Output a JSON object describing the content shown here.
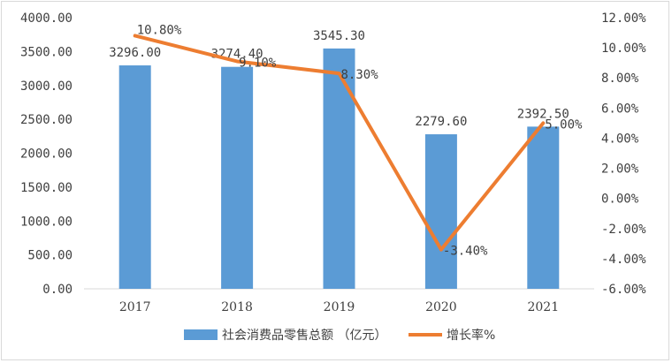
{
  "chart_data": {
    "type": "bar+line",
    "categories": [
      "2017",
      "2018",
      "2019",
      "2020",
      "2021"
    ],
    "series": [
      {
        "name": "社会消费品零售总额 （亿元）",
        "type": "bar",
        "axis": "left",
        "values": [
          3296.0,
          3274.4,
          3545.3,
          2279.6,
          2392.5
        ],
        "labels": [
          "3296.00",
          "3274.40",
          "3545.30",
          "2279.60",
          "2392.50"
        ],
        "color": "#5b9bd5"
      },
      {
        "name": "增长率%",
        "type": "line",
        "axis": "right",
        "values": [
          10.8,
          9.1,
          8.3,
          -3.4,
          5.0
        ],
        "labels": [
          "10.80%",
          "9.10%",
          "8.30%",
          "-3.40%",
          "5.00%"
        ],
        "color": "#ed7d31"
      }
    ],
    "left_axis": {
      "ylim": [
        0,
        4000
      ],
      "ticks": [
        "0.00",
        "500.00",
        "1000.00",
        "1500.00",
        "2000.00",
        "2500.00",
        "3000.00",
        "3500.00",
        "4000.00"
      ]
    },
    "right_axis": {
      "ylim": [
        -6,
        12
      ],
      "ticks": [
        "-6.00%",
        "-4.00%",
        "-2.00%",
        "0.00%",
        "2.00%",
        "4.00%",
        "6.00%",
        "8.00%",
        "10.00%",
        "12.00%"
      ]
    },
    "grid": false,
    "legend": "bottom"
  }
}
